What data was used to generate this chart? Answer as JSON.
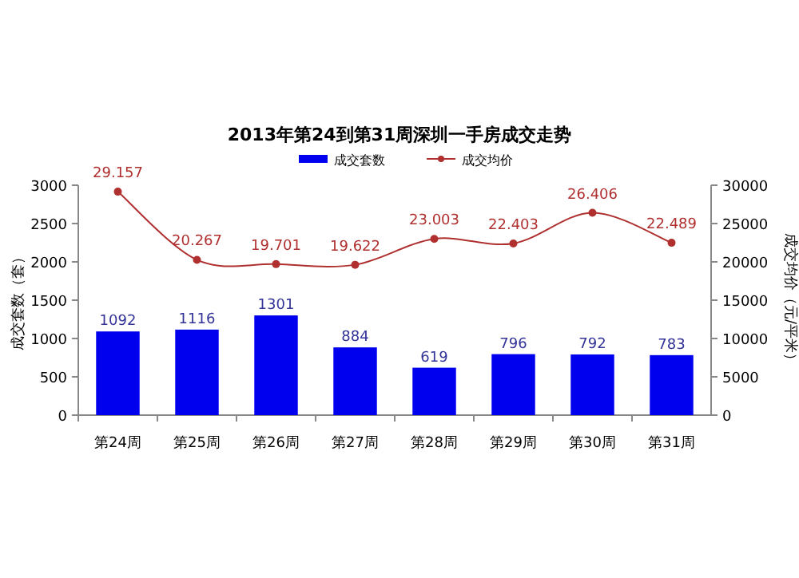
{
  "chart_data": {
    "type": "bar",
    "title": "2013年第24到第31周深圳一手房成交走势",
    "categories": [
      "第24周",
      "第25周",
      "第26周",
      "第27周",
      "第28周",
      "第29周",
      "第30周",
      "第31周"
    ],
    "series": [
      {
        "name": "成交套数",
        "color": "#0000ee",
        "values": [
          1092,
          1116,
          1301,
          884,
          619,
          796,
          792,
          783
        ],
        "value_labels": [
          "1092",
          "1116",
          "1301",
          "884",
          "619",
          "796",
          "792",
          "783"
        ]
      },
      {
        "name": "成交均价",
        "type": "line",
        "axis": "y2",
        "color": "#b03030",
        "marker": "circle",
        "values": [
          29157,
          20267,
          19701,
          19622,
          23003,
          22403,
          26406,
          22489
        ],
        "value_labels": [
          "29.157",
          "20.267",
          "19.701",
          "19.622",
          "23.003",
          "22.403",
          "26.406",
          "22.489"
        ]
      }
    ],
    "ylabel": "成交套数（套）",
    "y2label": "成交均价（元/平米）",
    "ylim": [
      0,
      3000
    ],
    "yticks": [
      0,
      500,
      1000,
      1500,
      2000,
      2500,
      3000
    ],
    "y2lim": [
      0,
      30000
    ],
    "y2ticks": [
      0,
      5000,
      10000,
      15000,
      20000,
      25000,
      30000
    ],
    "legend": "top",
    "grid": false
  }
}
